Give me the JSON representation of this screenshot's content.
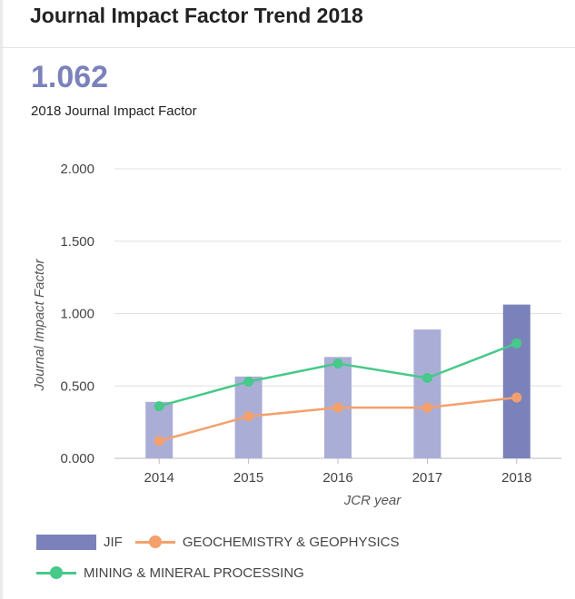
{
  "page": {
    "title": "Journal Impact Factor Trend 2018",
    "metric_value": "1.062",
    "metric_label": "2018 Journal Impact Factor"
  },
  "colors": {
    "jif_bar_past": "#aaaed6",
    "jif_bar_current": "#7b82bb",
    "geochem": "#f4a06c",
    "mining": "#46c98a",
    "grid": "#e0e0e0",
    "text": "#444444"
  },
  "chart_data": {
    "type": "bar",
    "title": "",
    "xlabel": "JCR year",
    "ylabel": "Journal Impact Factor",
    "categories": [
      "2014",
      "2015",
      "2016",
      "2017",
      "2018"
    ],
    "ylim": [
      0,
      2
    ],
    "yticks": [
      "0.000",
      "0.500",
      "1.000",
      "1.500",
      "2.000"
    ],
    "ytick_values": [
      0,
      0.5,
      1,
      1.5,
      2
    ],
    "grid": true,
    "legend_position": "bottom",
    "series": [
      {
        "name": "JIF",
        "kind": "bar",
        "values": [
          0.39,
          0.565,
          0.7,
          0.89,
          1.062
        ]
      },
      {
        "name": "GEOCHEMISTRY & GEOPHYSICS",
        "kind": "line",
        "values": [
          0.12,
          0.29,
          0.35,
          0.35,
          0.42
        ]
      },
      {
        "name": "MINING & MINERAL PROCESSING",
        "kind": "line",
        "values": [
          0.36,
          0.53,
          0.655,
          0.555,
          0.795
        ]
      }
    ]
  }
}
